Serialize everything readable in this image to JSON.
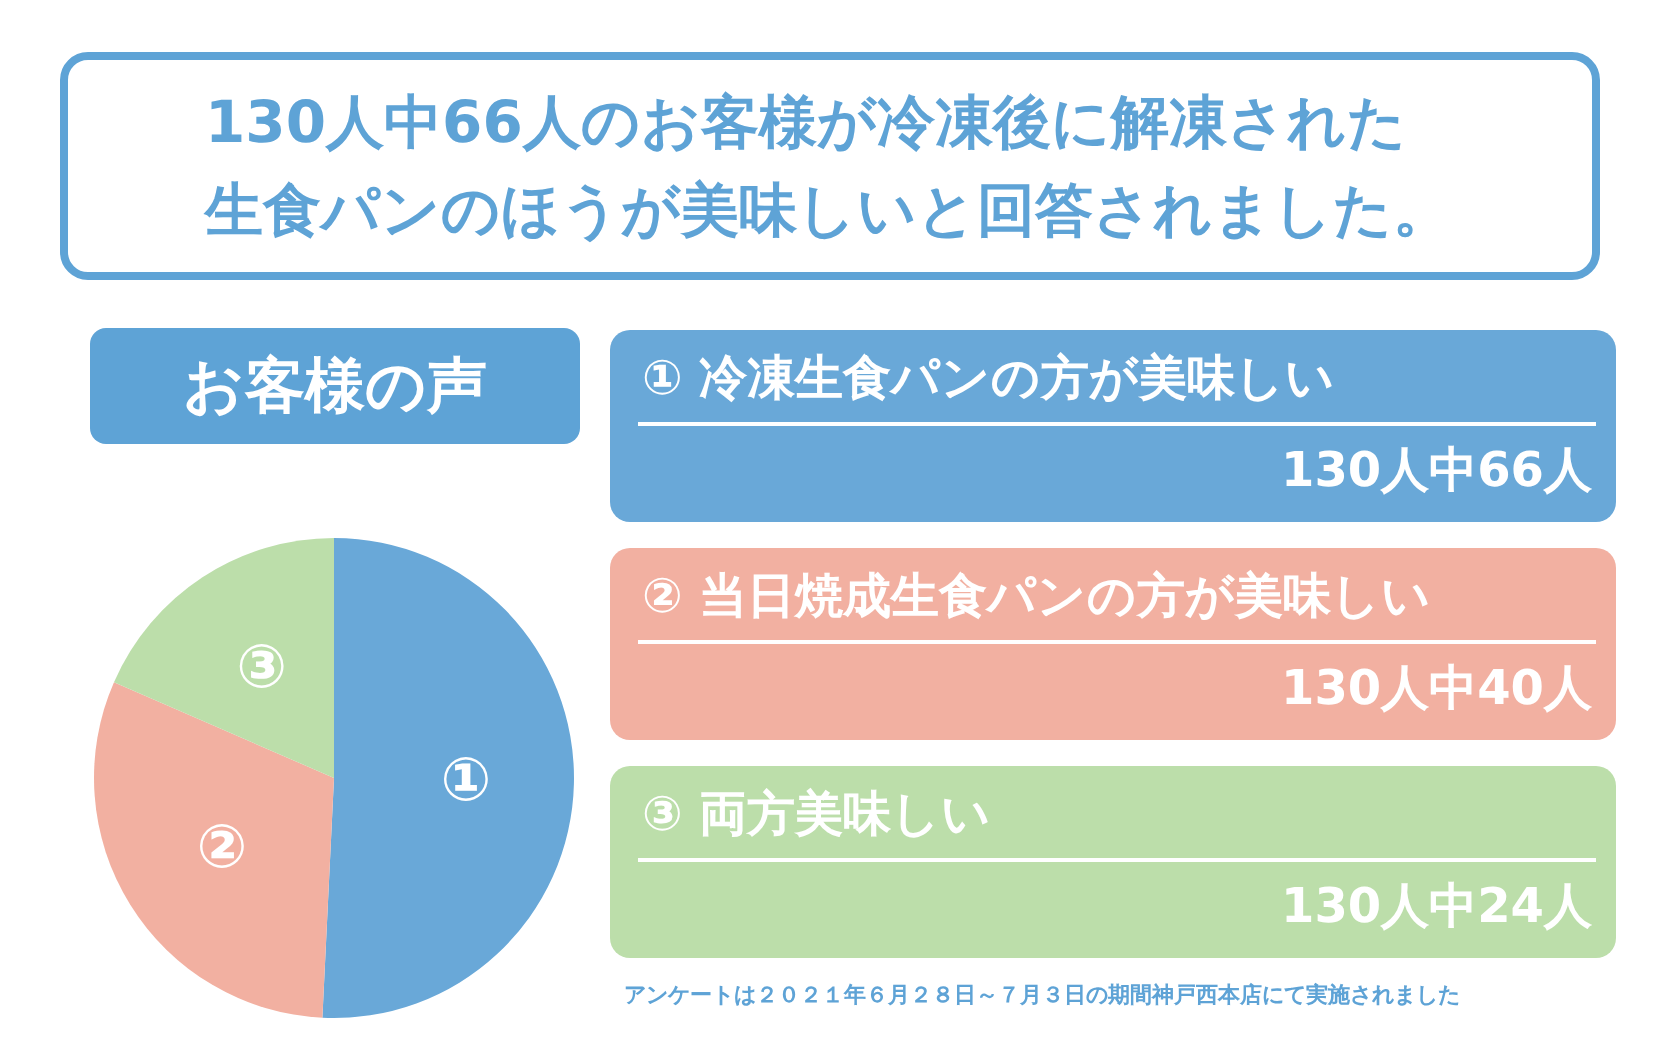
{
  "chart_data": {
    "type": "pie",
    "title": "130人中66人のお客様が冷凍後に解凍された生食パンのほうが美味しいと回答されました。",
    "subtitle": "お客様の声",
    "categories": [
      "①",
      "②",
      "③"
    ],
    "values": [
      50.77,
      30.77,
      18.46
    ],
    "colors": [
      "#69a8d8",
      "#f2b0a1",
      "#bcdeaa"
    ],
    "annotations": [
      "① 冷凍生食パンの方が美味しい",
      "130人中66人",
      "② 当日焼成生食パンの方が美味しい",
      "130人中40人",
      "③ 両方美味しい",
      "130人中24人",
      "アンケートは２０２１年６月２８日～７月３日の期間神戸西本店にて実施されました"
    ]
  }
}
